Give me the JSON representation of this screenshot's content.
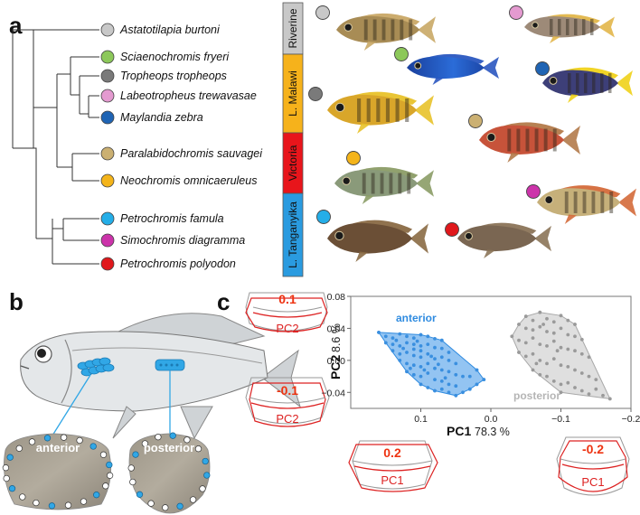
{
  "panels": {
    "a": "a",
    "b": "b",
    "c": "c"
  },
  "species": [
    {
      "name": "Astatotilapia burtoni",
      "color": "#c8c8c8"
    },
    {
      "name": "Sciaenochromis fryeri",
      "color": "#8cc85a"
    },
    {
      "name": "Tropheops tropheops",
      "color": "#7a7a7a"
    },
    {
      "name": "Labeotropheus trewavasae",
      "color": "#e49ad0"
    },
    {
      "name": "Maylandia zebra",
      "color": "#1f64b4"
    },
    {
      "name": "Paralabidochromis sauvagei",
      "color": "#cbb072"
    },
    {
      "name": "Neochromis omnicaeruleus",
      "color": "#f4b41a"
    },
    {
      "name": "Petrochromis famula",
      "color": "#24aee8"
    },
    {
      "name": "Simochromis diagramma",
      "color": "#cc33aa"
    },
    {
      "name": "Petrochromis polyodon",
      "color": "#e0181c"
    }
  ],
  "regions": [
    {
      "label": "Riverine",
      "color": "#c8c8c8"
    },
    {
      "label": "L. Malawi",
      "color": "#f6b21b"
    },
    {
      "label": "Victoria",
      "color": "#e8151b"
    },
    {
      "label": "L. Tanganyika",
      "color": "#2a9be0"
    }
  ],
  "scale_labels": {
    "anterior": "anterior",
    "posterior": "posterior"
  },
  "shape_boxes": {
    "pc2_pos": {
      "value": "0.1",
      "label": "PC2"
    },
    "pc2_neg": {
      "value": "-0.1",
      "label": "PC2"
    },
    "pc1_pos": {
      "value": "0.2",
      "label": "PC1"
    },
    "pc1_neg": {
      "value": "-0.2",
      "label": "PC1"
    }
  },
  "chart_data": {
    "type": "scatter",
    "xlabel": "PC1",
    "xlabel_pct": "78.3 %",
    "ylabel": "PC2",
    "ylabel_pct": "8.6 %",
    "xlim": [
      0.2,
      -0.2
    ],
    "ylim": [
      -0.06,
      0.08
    ],
    "xticks": [
      "0.1",
      "0.0",
      "−0.1",
      "−0.2"
    ],
    "yticks": [
      "0.08",
      "0.04",
      "0.00",
      "−0.04"
    ],
    "series": [
      {
        "name": "anterior",
        "color": "#3a8fdf",
        "points": [
          [
            0.16,
            0.035
          ],
          [
            0.15,
            0.03
          ],
          [
            0.14,
            0.028
          ],
          [
            0.13,
            0.033
          ],
          [
            0.12,
            0.03
          ],
          [
            0.11,
            0.028
          ],
          [
            0.1,
            0.032
          ],
          [
            0.09,
            0.03
          ],
          [
            0.08,
            0.027
          ],
          [
            0.07,
            0.025
          ],
          [
            0.15,
            0.022
          ],
          [
            0.14,
            0.02
          ],
          [
            0.13,
            0.018
          ],
          [
            0.12,
            0.022
          ],
          [
            0.11,
            0.02
          ],
          [
            0.1,
            0.018
          ],
          [
            0.09,
            0.02
          ],
          [
            0.08,
            0.016
          ],
          [
            0.07,
            0.015
          ],
          [
            0.06,
            0.01
          ],
          [
            0.14,
            0.012
          ],
          [
            0.13,
            0.008
          ],
          [
            0.12,
            0.01
          ],
          [
            0.11,
            0.006
          ],
          [
            0.1,
            0.004
          ],
          [
            0.09,
            0.008
          ],
          [
            0.08,
            0.002
          ],
          [
            0.07,
            0.004
          ],
          [
            0.06,
            0.0
          ],
          [
            0.05,
            -0.004
          ],
          [
            0.13,
            0.0
          ],
          [
            0.12,
            -0.004
          ],
          [
            0.11,
            -0.006
          ],
          [
            0.1,
            -0.008
          ],
          [
            0.09,
            -0.004
          ],
          [
            0.08,
            -0.01
          ],
          [
            0.07,
            -0.012
          ],
          [
            0.06,
            -0.014
          ],
          [
            0.05,
            -0.018
          ],
          [
            0.04,
            -0.02
          ],
          [
            0.12,
            -0.014
          ],
          [
            0.11,
            -0.018
          ],
          [
            0.1,
            -0.02
          ],
          [
            0.09,
            -0.016
          ],
          [
            0.08,
            -0.024
          ],
          [
            0.07,
            -0.026
          ],
          [
            0.06,
            -0.03
          ],
          [
            0.05,
            -0.032
          ],
          [
            0.1,
            -0.03
          ],
          [
            0.09,
            -0.034
          ],
          [
            0.08,
            -0.038
          ],
          [
            0.07,
            -0.036
          ],
          [
            0.06,
            -0.04
          ],
          [
            0.05,
            -0.044
          ],
          [
            0.04,
            -0.04
          ],
          [
            0.03,
            -0.036
          ],
          [
            0.02,
            -0.03
          ],
          [
            0.01,
            -0.024
          ],
          [
            0.03,
            -0.02
          ],
          [
            0.02,
            -0.012
          ],
          [
            0.11,
            0.014
          ],
          [
            0.1,
            0.012
          ],
          [
            0.085,
            0.005
          ],
          [
            0.075,
            -0.005
          ],
          [
            0.065,
            -0.022
          ],
          [
            0.095,
            -0.012
          ],
          [
            0.115,
            -0.01
          ],
          [
            0.125,
            0.015
          ],
          [
            0.105,
            0.024
          ],
          [
            0.135,
            0.025
          ]
        ]
      },
      {
        "name": "posterior",
        "color": "#9a9a9a",
        "points": [
          [
            -0.05,
            0.055
          ],
          [
            -0.06,
            0.05
          ],
          [
            -0.07,
            0.06
          ],
          [
            -0.08,
            0.052
          ],
          [
            -0.09,
            0.048
          ],
          [
            -0.1,
            0.056
          ],
          [
            -0.11,
            0.05
          ],
          [
            -0.12,
            0.045
          ],
          [
            -0.04,
            0.045
          ],
          [
            -0.05,
            0.04
          ],
          [
            -0.06,
            0.038
          ],
          [
            -0.07,
            0.042
          ],
          [
            -0.08,
            0.036
          ],
          [
            -0.09,
            0.034
          ],
          [
            -0.1,
            0.04
          ],
          [
            -0.11,
            0.032
          ],
          [
            -0.12,
            0.03
          ],
          [
            -0.13,
            0.026
          ],
          [
            -0.03,
            0.03
          ],
          [
            -0.04,
            0.025
          ],
          [
            -0.05,
            0.022
          ],
          [
            -0.06,
            0.028
          ],
          [
            -0.07,
            0.02
          ],
          [
            -0.08,
            0.018
          ],
          [
            -0.09,
            0.024
          ],
          [
            -0.1,
            0.016
          ],
          [
            -0.11,
            0.014
          ],
          [
            -0.12,
            0.012
          ],
          [
            -0.13,
            0.008
          ],
          [
            -0.14,
            0.004
          ],
          [
            -0.04,
            0.01
          ],
          [
            -0.05,
            0.005
          ],
          [
            -0.06,
            0.008
          ],
          [
            -0.07,
            0.0
          ],
          [
            -0.08,
            -0.004
          ],
          [
            -0.09,
            0.002
          ],
          [
            -0.1,
            -0.006
          ],
          [
            -0.11,
            -0.008
          ],
          [
            -0.12,
            -0.012
          ],
          [
            -0.13,
            -0.016
          ],
          [
            -0.14,
            -0.02
          ],
          [
            -0.15,
            -0.024
          ],
          [
            -0.06,
            -0.012
          ],
          [
            -0.07,
            -0.018
          ],
          [
            -0.08,
            -0.02
          ],
          [
            -0.09,
            -0.026
          ],
          [
            -0.1,
            -0.03
          ],
          [
            -0.11,
            -0.028
          ],
          [
            -0.12,
            -0.034
          ],
          [
            -0.13,
            -0.038
          ],
          [
            -0.15,
            -0.036
          ],
          [
            -0.16,
            -0.044
          ],
          [
            -0.17,
            -0.048
          ],
          [
            -0.14,
            -0.042
          ],
          [
            -0.1,
            -0.04
          ],
          [
            -0.075,
            0.045
          ],
          [
            -0.095,
            0.012
          ],
          [
            -0.065,
            -0.004
          ]
        ]
      }
    ]
  }
}
